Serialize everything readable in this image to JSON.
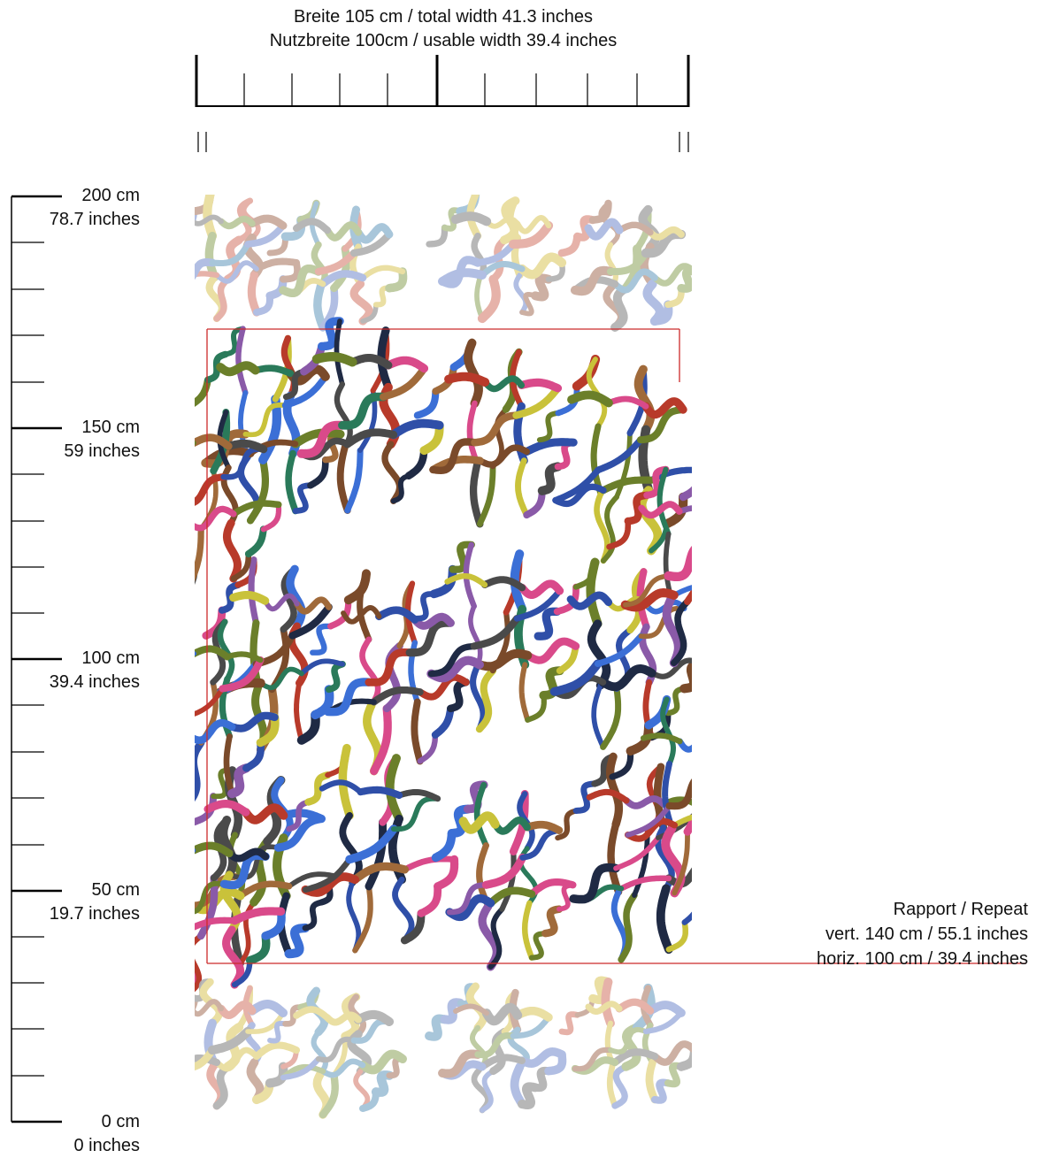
{
  "width_ruler": {
    "total_width_label": "Breite 105 cm / total width 41.3 inches",
    "usable_width_label": "Nutzbreite 100cm / usable width 39.4 inches"
  },
  "height_scale": {
    "marks": [
      {
        "cm": "200 cm",
        "inches": "78.7 inches"
      },
      {
        "cm": "150 cm",
        "inches": "59 inches"
      },
      {
        "cm": "100 cm",
        "inches": "39.4 inches"
      },
      {
        "cm": "50 cm",
        "inches": "19.7 inches"
      },
      {
        "cm": "0 cm",
        "inches": "0 inches"
      }
    ]
  },
  "repeat_info": {
    "heading": "Rapport / Repeat",
    "vertical": "vert. 140 cm  /  55.1 inches",
    "horizontal": "horiz. 100 cm  /  39.4 inches"
  },
  "colors": {
    "repeat_frame": "#cc2a2a",
    "ruler": "#000000",
    "stroke_palette": [
      "#1f2a44",
      "#2f4fa8",
      "#3b6fd6",
      "#7a4a2a",
      "#b83a2a",
      "#6b7f2a",
      "#c9c23a",
      "#2a7a5a",
      "#8a5aa8",
      "#d94a8a",
      "#4a4a4a",
      "#a06a3a"
    ],
    "faded_palette": [
      "#a9b8e0",
      "#c8a89a",
      "#b9c79a",
      "#e8dc9a",
      "#b0b0b0",
      "#e4aaa0",
      "#9fc0d6"
    ]
  }
}
